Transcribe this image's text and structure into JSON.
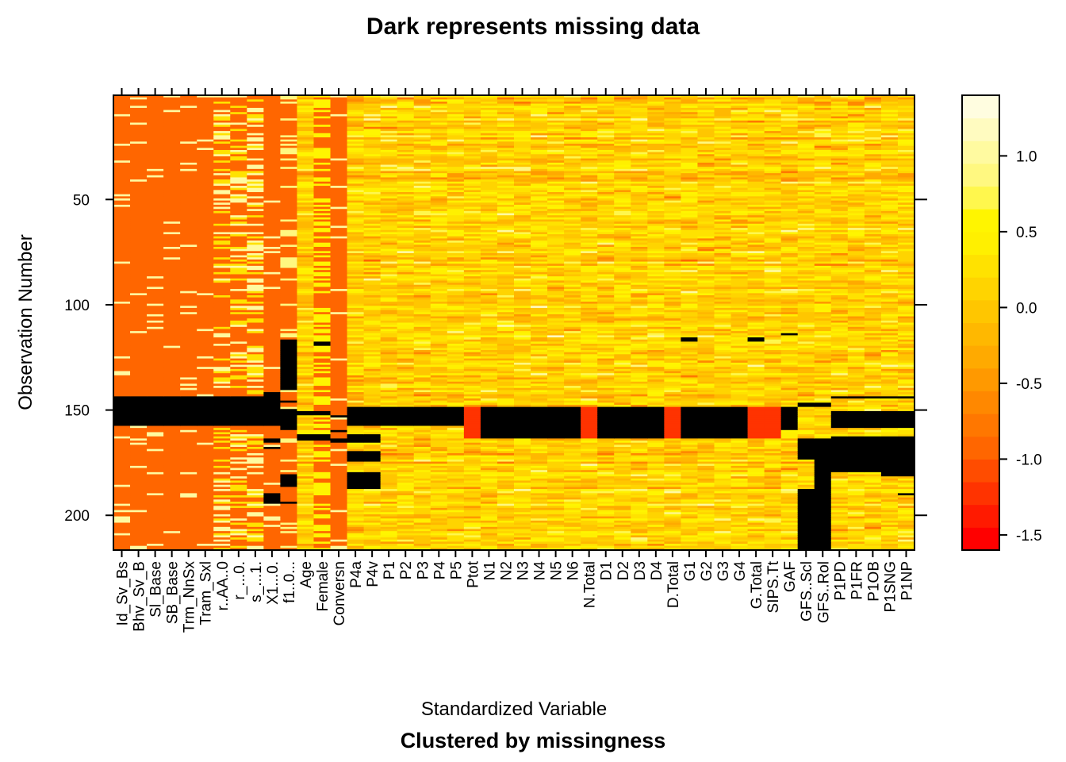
{
  "chart_data": {
    "type": "heatmap",
    "title": "Dark represents missing data",
    "xlabel": "Standardized Variable",
    "subtitle": "Clustered by missingness",
    "ylabel": "Observation Number",
    "n_observations": 216,
    "y_ticks": [
      50,
      100,
      150,
      200
    ],
    "variables": [
      "Id_Sv_Bs",
      "Bhv_Sv_B",
      "Sl_Base",
      "SB_Base",
      "Trm_NnSx",
      "Tram_Sxl",
      "r..AA..0",
      "r_...0.",
      "s_...1.",
      "X1...0.",
      "f1..0...",
      "Age",
      "Female",
      "Conversn",
      "P4a",
      "P4v",
      "P1",
      "P2",
      "P3",
      "P4",
      "P5",
      "Ptot",
      "N1",
      "N2",
      "N3",
      "N4",
      "N5",
      "N6",
      "N.Total",
      "D1",
      "D2",
      "D3",
      "D4",
      "D.Total",
      "G1",
      "G2",
      "G3",
      "G4",
      "G.Total",
      "SIPS.Tt",
      "GAF",
      "GFS..Scl",
      "GFS..Rol",
      "P1PD",
      "P1FR",
      "P1OB",
      "P1SNG",
      "P1NP"
    ],
    "colorbar": {
      "ticks": [
        1.0,
        0.5,
        0.0,
        -0.5,
        -1.0,
        -1.5
      ],
      "tick_labels": [
        "1.0",
        "0.5",
        "0.0",
        "-0.5",
        "-1.0",
        "-1.5"
      ],
      "range": [
        -1.6,
        1.4
      ],
      "colors": [
        "#FF0000",
        "#FF1A00",
        "#FF3300",
        "#FF4C00",
        "#FF6600",
        "#FF7700",
        "#FF8800",
        "#FF9900",
        "#FFAA00",
        "#FFB800",
        "#FFC600",
        "#FFD400",
        "#FFE200",
        "#FFF000",
        "#FFF500",
        "#FFF74D",
        "#FFF880",
        "#FFFAA0",
        "#FFFBC0",
        "#FFFDE0"
      ]
    },
    "missing_color": "#000000",
    "missing_blocks": [
      {
        "variables": [
          "Id_Sv_Bs",
          "Bhv_Sv_B",
          "Sl_Base",
          "SB_Base",
          "Trm_NnSx",
          "Tram_Sxl",
          "r..AA..0",
          "r_...0.",
          "s_...1."
        ],
        "rows": [
          144,
          157
        ]
      },
      {
        "variables": [
          "X1...0."
        ],
        "rows": [
          142,
          157
        ]
      },
      {
        "variables": [
          "X1...0."
        ],
        "rows": [
          164,
          165
        ]
      },
      {
        "variables": [
          "X1...0."
        ],
        "rows": [
          168,
          168
        ]
      },
      {
        "variables": [
          "X1...0."
        ],
        "rows": [
          190,
          194
        ]
      },
      {
        "variables": [
          "f1..0..."
        ],
        "rows": [
          117,
          140
        ]
      },
      {
        "variables": [
          "f1..0..."
        ],
        "rows": [
          146,
          146
        ]
      },
      {
        "variables": [
          "f1..0..."
        ],
        "rows": [
          150,
          159
        ]
      },
      {
        "variables": [
          "f1..0..."
        ],
        "rows": [
          181,
          186
        ]
      },
      {
        "variables": [
          "f1..0..."
        ],
        "rows": [
          194,
          194
        ]
      },
      {
        "variables": [
          "Age",
          "Female"
        ],
        "rows": [
          151,
          152
        ]
      },
      {
        "variables": [
          "Age",
          "Female"
        ],
        "rows": [
          162,
          164
        ]
      },
      {
        "variables": [
          "Female"
        ],
        "rows": [
          118,
          119
        ]
      },
      {
        "variables": [
          "Conversn"
        ],
        "rows": [
          153,
          153
        ]
      },
      {
        "variables": [
          "Conversn"
        ],
        "rows": [
          160,
          160
        ]
      },
      {
        "variables": [
          "Conversn"
        ],
        "rows": [
          164,
          165
        ]
      },
      {
        "variables": [
          "P4a",
          "P4v",
          "P1",
          "P2",
          "P3",
          "P4",
          "P5"
        ],
        "rows": [
          149,
          157
        ]
      },
      {
        "variables": [
          "P4a",
          "P4v"
        ],
        "rows": [
          162,
          165
        ]
      },
      {
        "variables": [
          "P4a",
          "P4v"
        ],
        "rows": [
          170,
          174
        ]
      },
      {
        "variables": [
          "P4a",
          "P4v"
        ],
        "rows": [
          180,
          187
        ]
      },
      {
        "variables": [
          "N1",
          "N2",
          "N3",
          "N4",
          "N5",
          "N6"
        ],
        "rows": [
          149,
          163
        ]
      },
      {
        "variables": [
          "D1",
          "D2",
          "D3",
          "D4"
        ],
        "rows": [
          149,
          163
        ]
      },
      {
        "variables": [
          "G1",
          "G2",
          "G3",
          "G4"
        ],
        "rows": [
          149,
          163
        ]
      },
      {
        "variables": [
          "G1"
        ],
        "rows": [
          116,
          117
        ]
      },
      {
        "variables": [
          "G.Total"
        ],
        "rows": [
          116,
          117
        ]
      },
      {
        "variables": [
          "GAF"
        ],
        "rows": [
          149,
          159
        ]
      },
      {
        "variables": [
          "GAF"
        ],
        "rows": [
          114,
          114
        ]
      },
      {
        "variables": [
          "GFS..Scl"
        ],
        "rows": [
          164,
          173
        ]
      },
      {
        "variables": [
          "GFS..Scl",
          "GFS..Rol"
        ],
        "rows": [
          188,
          216
        ]
      },
      {
        "variables": [
          "GFS..Rol"
        ],
        "rows": [
          164,
          188
        ]
      },
      {
        "variables": [
          "GFS..Scl",
          "GFS..Rol"
        ],
        "rows": [
          147,
          148
        ]
      },
      {
        "variables": [
          "P1PD",
          "P1FR",
          "P1OB",
          "P1SNG",
          "P1NP"
        ],
        "rows": [
          151,
          158
        ]
      },
      {
        "variables": [
          "P1PD",
          "P1FR",
          "P1OB",
          "P1SNG",
          "P1NP"
        ],
        "rows": [
          163,
          179
        ]
      },
      {
        "variables": [
          "P1PD",
          "P1FR",
          "P1OB",
          "P1SNG",
          "P1NP"
        ],
        "rows": [
          144,
          144
        ]
      },
      {
        "variables": [
          "P1SNG",
          "P1NP"
        ],
        "rows": [
          180,
          181
        ]
      },
      {
        "variables": [
          "P1NP"
        ],
        "rows": [
          190,
          190
        ]
      }
    ],
    "constant_red_columns": {
      "variables": [
        "Id_Sv_Bs",
        "Bhv_Sv_B",
        "Sl_Base",
        "SB_Base",
        "Trm_NnSx",
        "Tram_Sxl",
        "X1...0.",
        "Conversn"
      ],
      "value": -1.0
    },
    "red_filled_blocks": [
      {
        "variables": [
          "Ptot",
          "N.Total",
          "D.Total",
          "G.Total",
          "SIPS.Tt"
        ],
        "rows": [
          149,
          163
        ],
        "value": -1.3
      }
    ],
    "grid": false,
    "legend": "colorbar-right"
  }
}
